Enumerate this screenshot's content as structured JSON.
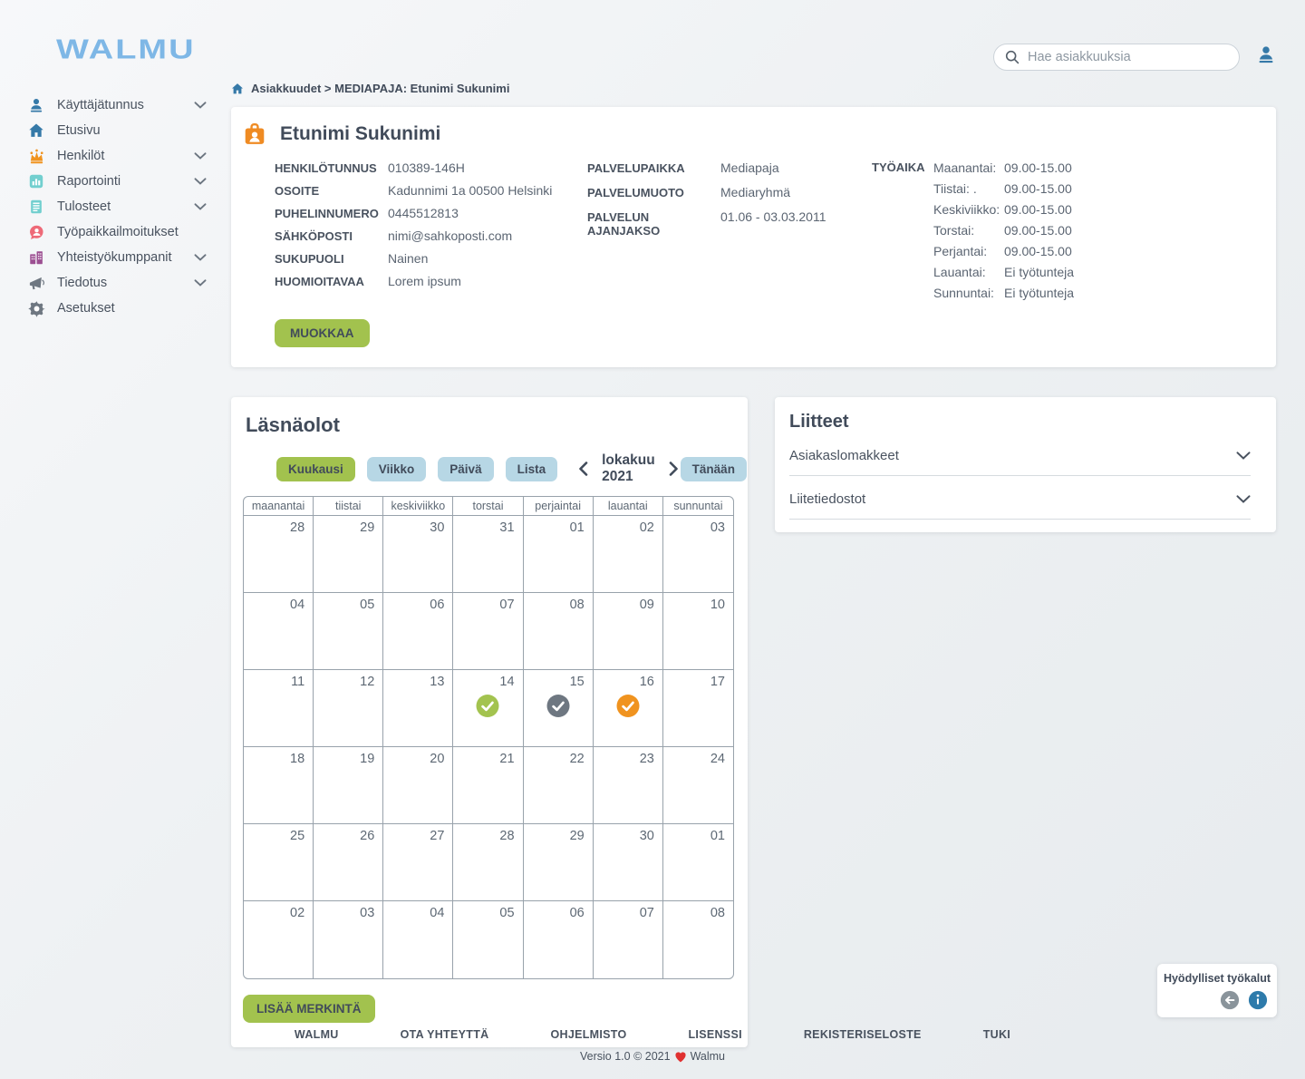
{
  "logo": "WALMU",
  "header": {
    "search_placeholder": "Hae asiakkuuksia"
  },
  "sidebar": {
    "items": [
      {
        "label": "Käyttäjätunnus",
        "chevron": true
      },
      {
        "label": "Etusivu",
        "chevron": false
      },
      {
        "label": "Henkilöt",
        "chevron": true
      },
      {
        "label": "Raportointi",
        "chevron": true
      },
      {
        "label": "Tulosteet",
        "chevron": true
      },
      {
        "label": "Työpaikkailmoitukset",
        "chevron": false
      },
      {
        "label": "Yhteistyökumppanit",
        "chevron": true
      },
      {
        "label": "Tiedotus",
        "chevron": true
      },
      {
        "label": "Asetukset",
        "chevron": false
      }
    ]
  },
  "breadcrumb": "Asiakkuudet > MEDIAPAJA: Etunimi Sukunimi",
  "client": {
    "name": "Etunimi Sukunimi",
    "fields": [
      {
        "label": "HENKILÖTUNNUS",
        "value": "010389-146H"
      },
      {
        "label": "OSOITE",
        "value": "Kadunnimi 1a 00500 Helsinki"
      },
      {
        "label": "PUHELINNUMERO",
        "value": "0445512813"
      },
      {
        "label": "SÄHKÖPOSTI",
        "value": "nimi@sahkoposti.com"
      },
      {
        "label": "SUKUPUOLI",
        "value": "Nainen"
      },
      {
        "label": "HUOMIOITAVAA",
        "value": "Lorem ipsum"
      }
    ],
    "service_fields": [
      {
        "label": "PALVELUPAIKKA",
        "value": "Mediapaja"
      },
      {
        "label": "PALVELUMUOTO",
        "value": "Mediaryhmä"
      },
      {
        "label": "PALVELUN AJANJAKSO",
        "value": "01.06 - 03.03.2011"
      }
    ],
    "work_time_label": "TYÖAIKA",
    "work_time": [
      {
        "day": "Maanantai:",
        "hours": "09.00-15.00"
      },
      {
        "day": "Tiistai: .",
        "hours": "09.00-15.00"
      },
      {
        "day": "Keskiviikko:",
        "hours": "09.00-15.00"
      },
      {
        "day": "Torstai:",
        "hours": "09.00-15.00"
      },
      {
        "day": "Perjantai:",
        "hours": "09.00-15.00"
      },
      {
        "day": "Lauantai:",
        "hours": "Ei työtunteja"
      },
      {
        "day": "Sunnuntai:",
        "hours": "Ei työtunteja"
      }
    ],
    "edit_button": "MUOKKAA"
  },
  "attendance": {
    "title": "Läsnäolot",
    "view_buttons": [
      {
        "label": "Kuukausi",
        "active": true
      },
      {
        "label": "Viikko",
        "active": false
      },
      {
        "label": "Päivä",
        "active": false
      },
      {
        "label": "Lista",
        "active": false
      }
    ],
    "month_label": "lokakuu 2021",
    "today_button": "Tänään",
    "add_button": "LISÄÄ MERKINTÄ",
    "weekdays": [
      "maanantai",
      "tiistai",
      "keskiviikko",
      "torstai",
      "perjaintai",
      "lauantai",
      "sunnuntai"
    ],
    "weeks": [
      [
        "28",
        "29",
        "30",
        "31",
        "01",
        "02",
        "03"
      ],
      [
        "04",
        "05",
        "06",
        "07",
        "08",
        "09",
        "10"
      ],
      [
        "11",
        "12",
        "13",
        "14",
        "15",
        "16",
        "17"
      ],
      [
        "18",
        "19",
        "20",
        "21",
        "22",
        "23",
        "24"
      ],
      [
        "25",
        "26",
        "27",
        "28",
        "29",
        "30",
        "01"
      ],
      [
        "02",
        "03",
        "04",
        "05",
        "06",
        "07",
        "08"
      ]
    ],
    "marks": [
      {
        "week": 2,
        "day": 3,
        "icon": "check",
        "name": "green",
        "color": "#a3c34f"
      },
      {
        "week": 2,
        "day": 4,
        "icon": "check",
        "name": "gray",
        "color": "#6e7781"
      },
      {
        "week": 2,
        "day": 5,
        "icon": "check",
        "name": "orange",
        "color": "#f0931f"
      }
    ]
  },
  "attachments": {
    "title": "Liitteet",
    "sections": [
      {
        "label": "Asiakaslomakkeet"
      },
      {
        "label": "Liitetiedostot"
      }
    ]
  },
  "tools": {
    "title": "Hyödylliset työkalut"
  },
  "footer": {
    "links": [
      "WALMU",
      "OTA YHTEYTTÄ",
      "OHJELMISTO",
      "LISENSSI",
      "REKISTERISELOSTE",
      "TUKI"
    ],
    "version": "Versio 1.0 © 2021",
    "version_suffix": "Walmu"
  },
  "colors": {
    "accent_green": "#a2c24e",
    "accent_light_blue": "#b7d7e5",
    "brand_blue": "#7eb7e6",
    "icon_blue": "#3579a8",
    "mark_green": "#a3c34f",
    "mark_gray": "#6e7781",
    "mark_orange": "#f0931f"
  }
}
